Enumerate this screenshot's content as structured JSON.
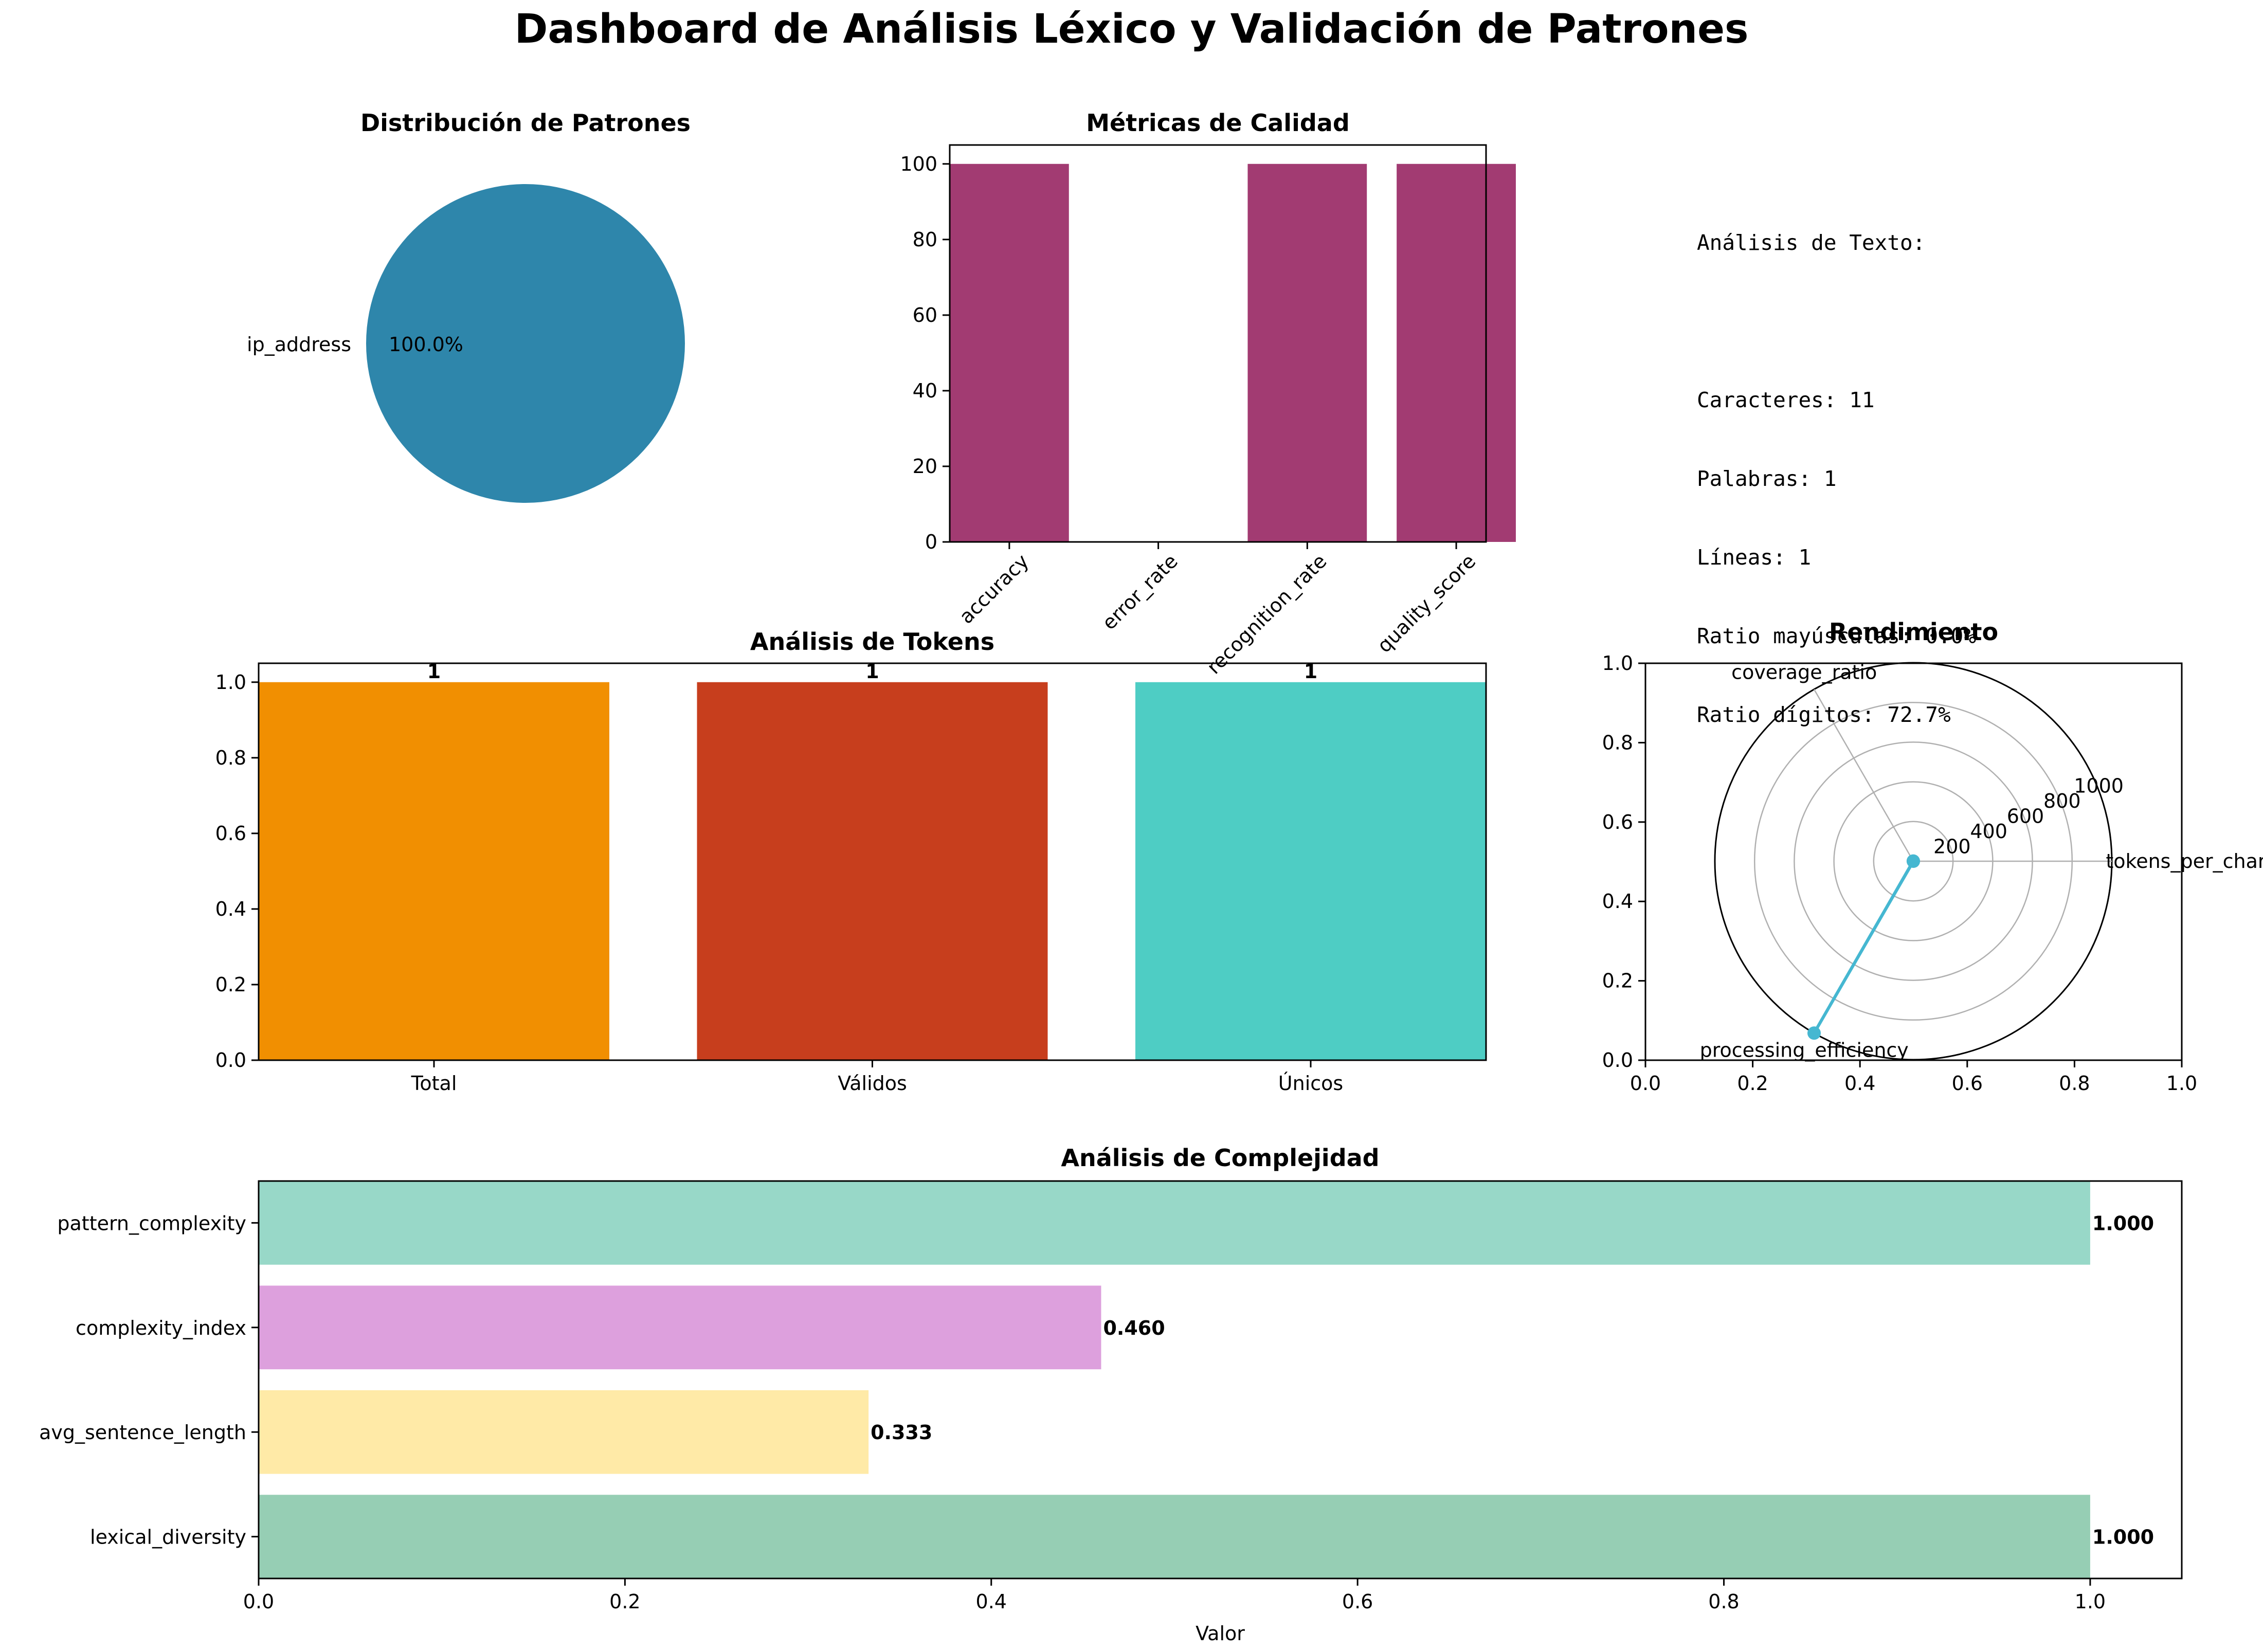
{
  "page": {
    "title": "Dashboard de Análisis Léxico y Validación de Patrones"
  },
  "text_panel": {
    "lines": [
      "Análisis de Texto:",
      "",
      "Caracteres: 11",
      "Palabras: 1",
      "Líneas: 1",
      "Ratio mayúsculas: 0.0%",
      "Ratio dígitos: 72.7%"
    ]
  },
  "chart_data": [
    {
      "id": "pie",
      "type": "pie",
      "title": "Distribución de Patrones",
      "labels": [
        "ip_address"
      ],
      "values": [
        100.0
      ],
      "pct_labels": [
        "100.0%"
      ],
      "colors": [
        "#2E86AB"
      ]
    },
    {
      "id": "quality",
      "type": "bar",
      "title": "Métricas de Calidad",
      "categories": [
        "accuracy",
        "error_rate",
        "recognition_rate",
        "quality_score"
      ],
      "values": [
        100,
        0,
        100,
        100
      ],
      "color": "#A23B72",
      "ylim": [
        0,
        105
      ],
      "yticks": [
        0,
        20,
        40,
        60,
        80,
        100
      ]
    },
    {
      "id": "tokens",
      "type": "bar",
      "title": "Análisis de Tokens",
      "categories": [
        "Total",
        "Válidos",
        "Únicos"
      ],
      "values": [
        1,
        1,
        1
      ],
      "value_labels": [
        "1",
        "1",
        "1"
      ],
      "colors": [
        "#F18F01",
        "#C73E1D",
        "#4ECDC4"
      ],
      "ylim": [
        0,
        1.05
      ],
      "yticks": [
        "0.0",
        "0.2",
        "0.4",
        "0.6",
        "0.8",
        "1.0"
      ]
    },
    {
      "id": "radar",
      "type": "radar",
      "title": "Rendimiento",
      "axes": [
        "tokens_per_character",
        "coverage_ratio",
        "processing_efficiency"
      ],
      "values": [
        0.09,
        1.0,
        1000
      ],
      "rlim": [
        0,
        1000
      ],
      "rticks": [
        "200",
        "400",
        "600",
        "800",
        "1000"
      ],
      "color": "#45B7D1",
      "frame_ticks": [
        "0.0",
        "0.2",
        "0.4",
        "0.6",
        "0.8",
        "1.0"
      ]
    },
    {
      "id": "complexity",
      "type": "bar",
      "orientation": "horizontal",
      "title": "Análisis de Complejidad",
      "categories": [
        "lexical_diversity",
        "avg_sentence_length",
        "complexity_index",
        "pattern_complexity"
      ],
      "values": [
        1.0,
        0.333,
        0.46,
        1.0
      ],
      "value_labels": [
        "1.000",
        "0.333",
        "0.460",
        "1.000"
      ],
      "colors": [
        "#96CEB4",
        "#FFEAA7",
        "#DDA0DD",
        "#98D8C8"
      ],
      "xlabel": "Valor",
      "xlim": [
        0,
        1.05
      ],
      "xticks": [
        "0.0",
        "0.2",
        "0.4",
        "0.6",
        "0.8",
        "1.0"
      ]
    }
  ]
}
